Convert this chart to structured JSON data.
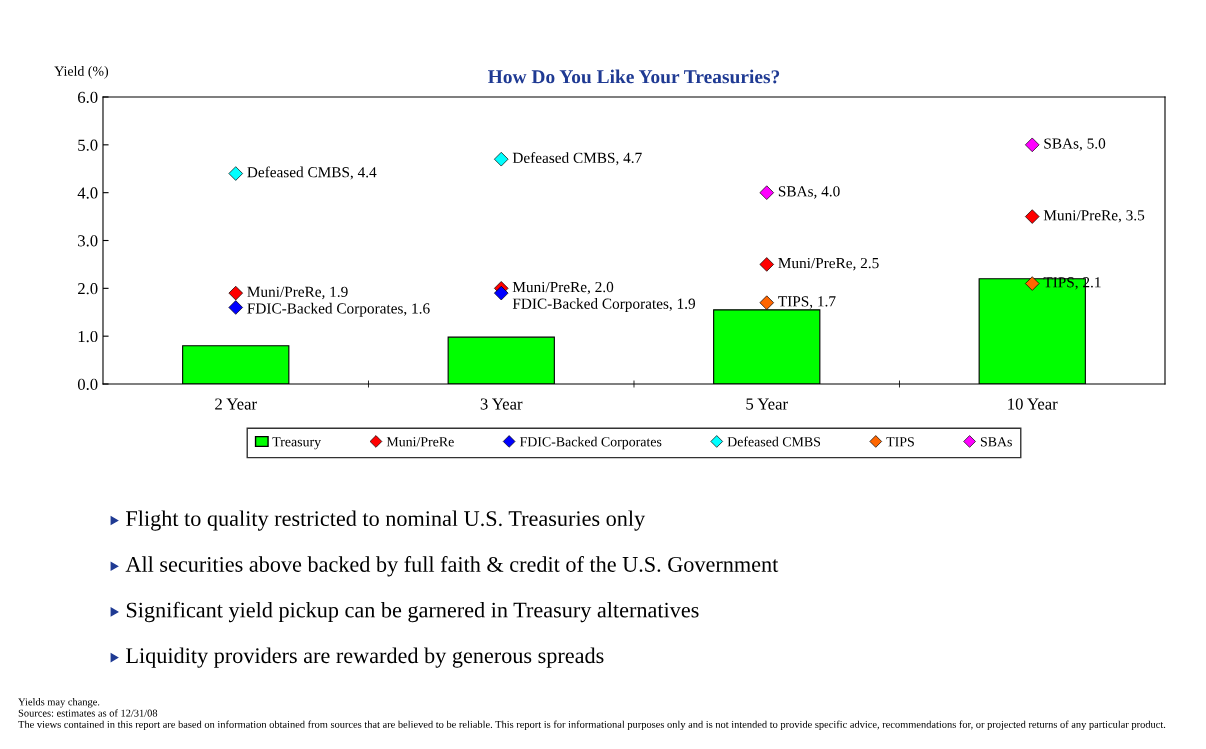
{
  "chart_data": {
    "type": "bar",
    "title": "How Do You Like Your Treasuries?",
    "ylabel": "Yield (%)",
    "categories": [
      "2 Year",
      "3 Year",
      "5 Year",
      "10 Year"
    ],
    "ylim": [
      0,
      6
    ],
    "yticks": [
      {
        "value": 0,
        "label": "0.0"
      },
      {
        "value": 1,
        "label": "1.0"
      },
      {
        "value": 2,
        "label": "2.0"
      },
      {
        "value": 3,
        "label": "3.0"
      },
      {
        "value": 4,
        "label": "4.0"
      },
      {
        "value": 5,
        "label": "5.0"
      },
      {
        "value": 6,
        "label": "6.0"
      }
    ],
    "grid": false,
    "legend": "bottom",
    "marker": "diamond",
    "series": [
      {
        "name": "Treasury",
        "color": "#00ff00",
        "values": [
          0.8,
          0.98,
          1.55,
          2.2
        ]
      },
      {
        "name": "Muni/PreRe",
        "type": "scatter",
        "color": "#ff0000",
        "values": [
          1.9,
          2.0,
          2.5,
          3.5
        ],
        "value_labels": [
          "Muni/PreRe, 1.9",
          "Muni/PreRe, 2.0",
          "Muni/PreRe, 2.5",
          "Muni/PreRe, 3.5"
        ]
      },
      {
        "name": "FDIC-Backed Corporates",
        "type": "scatter",
        "color": "#0000ff",
        "values": [
          1.6,
          1.9,
          null,
          null
        ],
        "value_labels": [
          "FDIC-Backed Corporates, 1.6",
          "FDIC-Backed Corporates, 1.9",
          null,
          null
        ]
      },
      {
        "name": "Defeased CMBS",
        "type": "scatter",
        "color": "#00ffff",
        "values": [
          4.4,
          4.7,
          null,
          null
        ],
        "value_labels": [
          "Defeased CMBS, 4.4",
          "Defeased CMBS, 4.7",
          null,
          null
        ]
      },
      {
        "name": "TIPS",
        "type": "scatter",
        "color": "#ff6600",
        "values": [
          null,
          null,
          1.7,
          2.1
        ],
        "value_labels": [
          null,
          null,
          "TIPS, 1.7",
          "TIPS, 2.1"
        ]
      },
      {
        "name": "SBAs",
        "type": "scatter",
        "color": "#ff00ff",
        "values": [
          null,
          null,
          4.0,
          5.0
        ],
        "value_labels": [
          null,
          null,
          "SBAs, 4.0",
          "SBAs, 5.0"
        ]
      }
    ],
    "annotations": [
      "Flight to quality restricted to nominal U.S. Treasuries only",
      "All securities above backed by full faith & credit of the U.S. Government",
      "Significant yield pickup can be garnered in Treasury alternatives",
      "Liquidity providers are rewarded by generous spreads",
      "Yields may change.",
      "Sources: estimates as of 12/31/08",
      "The views contained in this report are based on information obtained from sources that are believed to be reliable. This report is for informational purposes only and is not intended to provide specific advice, recommendations for, or projected returns of any particular product."
    ]
  }
}
